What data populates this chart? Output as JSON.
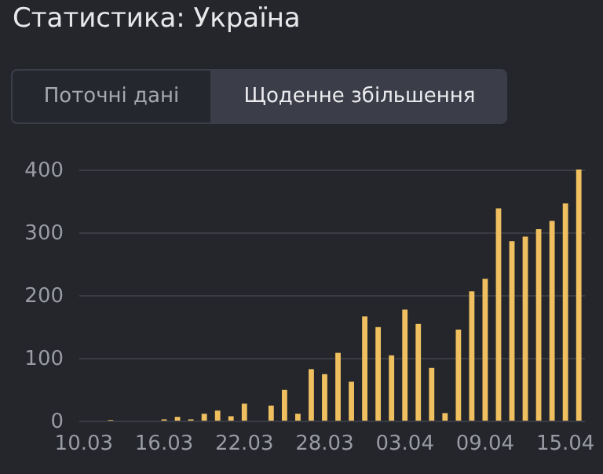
{
  "chart_data": {
    "type": "bar",
    "title": "Статистика: Україна",
    "annotations": [
      "Поточні дані",
      "Щоденне збільшення"
    ],
    "categories": [
      "10.03",
      null,
      null,
      null,
      null,
      null,
      "16.03",
      null,
      null,
      null,
      null,
      null,
      "22.03",
      null,
      null,
      null,
      null,
      null,
      "28.03",
      null,
      null,
      null,
      null,
      null,
      "03.04",
      null,
      null,
      null,
      null,
      null,
      "09.04",
      null,
      null,
      null,
      null,
      null,
      "15.04",
      null
    ],
    "values": [
      0,
      0,
      1,
      0,
      0,
      0,
      2,
      6,
      2,
      11,
      16,
      7,
      27,
      0,
      24,
      49,
      11,
      82,
      74,
      108,
      62,
      166,
      149,
      104,
      177,
      154,
      84,
      12,
      145,
      206,
      226,
      338,
      286,
      293,
      305,
      318,
      346,
      400
    ],
    "color": "#f0c060",
    "ylim": [
      0,
      400
    ],
    "yticks": [
      0,
      100,
      200,
      300,
      400
    ],
    "grid": "y"
  }
}
